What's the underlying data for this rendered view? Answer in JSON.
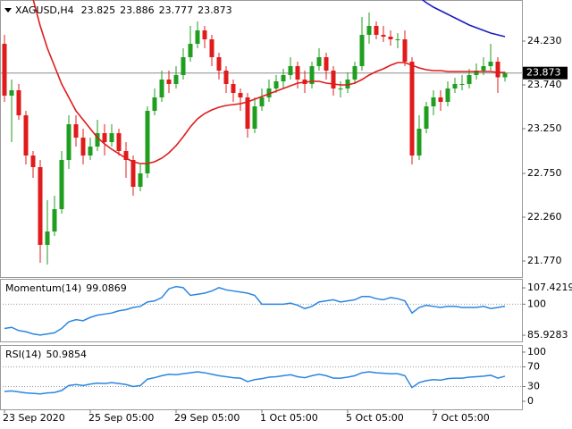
{
  "chart_data": [
    {
      "type": "candlestick",
      "title": "XAGUSD,H4",
      "categories": [
        "23 Sep 2020",
        null,
        null,
        null,
        null,
        null,
        null,
        null,
        null,
        null,
        null,
        null,
        "25 Sep 05:00",
        null,
        null,
        null,
        null,
        null,
        null,
        null,
        null,
        null,
        null,
        null,
        "29 Sep 05:00",
        null,
        null,
        null,
        null,
        null,
        null,
        null,
        null,
        null,
        null,
        null,
        "1 Oct 05:00",
        null,
        null,
        null,
        null,
        null,
        null,
        null,
        null,
        null,
        null,
        null,
        "5 Oct 05:00",
        null,
        null,
        null,
        null,
        null,
        null,
        null,
        null,
        null,
        null,
        null,
        "7 Oct 05:00",
        null,
        null,
        null,
        null,
        null,
        null,
        null,
        null,
        null,
        null
      ],
      "open": [
        24.2,
        23.62,
        23.68,
        23.4,
        22.95,
        22.82,
        21.95,
        22.1,
        22.35,
        22.9,
        23.3,
        23.15,
        22.95,
        23.05,
        23.2,
        23.1,
        23.2,
        23.0,
        22.9,
        22.6,
        22.75,
        23.45,
        23.6,
        23.8,
        23.75,
        23.85,
        24.05,
        24.2,
        24.35,
        24.25,
        24.05,
        23.9,
        23.75,
        23.65,
        23.6,
        23.25,
        23.5,
        23.6,
        23.7,
        23.78,
        23.85,
        23.95,
        23.8,
        23.75,
        23.95,
        24.05,
        23.9,
        23.7,
        23.7,
        23.8,
        23.95,
        24.3,
        24.4,
        24.3,
        24.28,
        24.25,
        24.25,
        24.0,
        22.95,
        23.25,
        23.5,
        23.6,
        23.55,
        23.7,
        23.75,
        23.75,
        23.85,
        23.9,
        23.95,
        24.0,
        23.825
      ],
      "high": [
        24.3,
        23.8,
        23.75,
        23.45,
        23.0,
        22.9,
        22.45,
        22.5,
        23.0,
        23.4,
        23.4,
        23.25,
        23.15,
        23.35,
        23.3,
        23.3,
        23.25,
        23.1,
        22.95,
        22.85,
        23.5,
        23.7,
        23.9,
        23.9,
        23.95,
        24.15,
        24.4,
        24.45,
        24.4,
        24.3,
        24.1,
        23.95,
        23.8,
        23.7,
        23.65,
        23.6,
        23.7,
        23.8,
        23.85,
        23.92,
        24.05,
        24.0,
        23.9,
        24.0,
        24.15,
        24.1,
        23.95,
        23.78,
        23.88,
        24.0,
        24.5,
        24.55,
        24.45,
        24.4,
        24.35,
        24.32,
        24.35,
        24.05,
        23.4,
        23.55,
        23.68,
        23.68,
        23.78,
        23.82,
        23.85,
        23.92,
        23.98,
        24.05,
        24.2,
        24.05,
        23.886
      ],
      "low": [
        23.55,
        23.1,
        23.35,
        22.85,
        22.7,
        21.75,
        21.73,
        22.05,
        22.3,
        22.8,
        23.05,
        22.85,
        22.9,
        23.0,
        22.95,
        23.05,
        22.95,
        22.7,
        22.5,
        22.55,
        22.7,
        23.4,
        23.55,
        23.65,
        23.7,
        23.8,
        24.0,
        24.15,
        24.15,
        23.95,
        23.8,
        23.65,
        23.55,
        23.45,
        23.15,
        23.2,
        23.45,
        23.55,
        23.65,
        23.7,
        23.8,
        23.7,
        23.65,
        23.7,
        23.9,
        23.8,
        23.62,
        23.6,
        23.65,
        23.75,
        23.9,
        24.2,
        24.25,
        24.22,
        24.18,
        24.15,
        23.95,
        22.85,
        22.9,
        23.2,
        23.4,
        23.45,
        23.5,
        23.65,
        23.68,
        23.7,
        23.8,
        23.85,
        23.9,
        23.65,
        23.777
      ],
      "close": [
        23.62,
        23.68,
        23.4,
        22.95,
        22.82,
        21.95,
        22.1,
        22.35,
        22.9,
        23.3,
        23.15,
        22.95,
        23.05,
        23.2,
        23.1,
        23.2,
        23.0,
        22.9,
        22.6,
        22.75,
        23.45,
        23.6,
        23.8,
        23.75,
        23.85,
        24.05,
        24.2,
        24.35,
        24.25,
        24.05,
        23.9,
        23.75,
        23.65,
        23.6,
        23.25,
        23.5,
        23.6,
        23.7,
        23.78,
        23.85,
        23.95,
        23.8,
        23.75,
        23.95,
        24.05,
        23.9,
        23.7,
        23.7,
        23.8,
        23.95,
        24.3,
        24.4,
        24.3,
        24.28,
        24.25,
        24.25,
        24.0,
        22.95,
        23.25,
        23.5,
        23.6,
        23.55,
        23.7,
        23.75,
        23.75,
        23.85,
        23.9,
        23.95,
        24.0,
        23.825,
        23.873
      ],
      "up_color": "#1f9e1f",
      "down_color": "#e01b1b",
      "overlays": [
        {
          "color": "#e01b1b",
          "values": [
            null,
            null,
            null,
            null,
            24.7,
            24.4,
            24.15,
            23.95,
            23.75,
            23.6,
            23.45,
            23.35,
            23.25,
            23.15,
            23.08,
            23.02,
            22.97,
            22.92,
            22.88,
            22.86,
            22.86,
            22.88,
            22.92,
            22.98,
            23.06,
            23.16,
            23.27,
            23.36,
            23.42,
            23.46,
            23.49,
            23.51,
            23.52,
            23.53,
            23.55,
            23.58,
            23.61,
            23.64,
            23.67,
            23.7,
            23.73,
            23.76,
            23.77,
            23.78,
            23.78,
            23.76,
            23.75,
            23.74,
            23.74,
            23.76,
            23.8,
            23.85,
            23.89,
            23.92,
            23.96,
            23.99,
            23.99,
            23.96,
            23.93,
            23.91,
            23.9,
            23.9,
            23.89,
            23.89,
            23.89,
            23.89,
            23.89,
            23.89,
            23.89,
            23.88,
            23.88
          ]
        },
        {
          "color": "#1c1cc0",
          "values": [
            null,
            null,
            null,
            null,
            null,
            null,
            null,
            null,
            null,
            null,
            null,
            null,
            null,
            null,
            null,
            null,
            null,
            null,
            null,
            null,
            null,
            null,
            null,
            null,
            null,
            null,
            null,
            null,
            null,
            null,
            null,
            null,
            null,
            null,
            null,
            null,
            null,
            null,
            null,
            null,
            null,
            null,
            null,
            null,
            null,
            null,
            null,
            null,
            null,
            null,
            null,
            null,
            null,
            null,
            null,
            null,
            null,
            null,
            24.72,
            24.66,
            24.61,
            24.57,
            24.53,
            24.49,
            24.45,
            24.41,
            24.38,
            24.35,
            24.32,
            24.3,
            24.28
          ]
        }
      ],
      "ylim": [
        21.59,
        24.69
      ],
      "yticks": [
        {
          "value": 24.23,
          "label": "24.230"
        },
        {
          "value": 23.74,
          "label": "23.740"
        },
        {
          "value": 23.25,
          "label": "23.250"
        },
        {
          "value": 22.75,
          "label": "22.750"
        },
        {
          "value": 22.26,
          "label": "22.260"
        },
        {
          "value": 21.77,
          "label": "21.770"
        }
      ]
    },
    {
      "type": "line",
      "title": "Momentum(14)",
      "color": "#2b86e0",
      "values": [
        89,
        89.5,
        88,
        87.5,
        86.5,
        86,
        86.5,
        87,
        89,
        92,
        93,
        92.5,
        94,
        95,
        95.5,
        96,
        97,
        97.5,
        98.5,
        99,
        101,
        101.5,
        103,
        107,
        108,
        107.5,
        104,
        104.5,
        105,
        106,
        107.5,
        106.5,
        106,
        105.5,
        105,
        104,
        100,
        100,
        100,
        100,
        100.5,
        99.5,
        98,
        99,
        101,
        101.5,
        102,
        101,
        101.5,
        102,
        103.5,
        103.5,
        102.5,
        102,
        103,
        102.5,
        101.5,
        96,
        98.5,
        99.5,
        99,
        98.5,
        99,
        99,
        98.5,
        98.5,
        98.5,
        99,
        98,
        98.5,
        99.0869
      ],
      "ylim": [
        83.1,
        111.5
      ],
      "yticks": [
        107.4219,
        100,
        85.9283
      ],
      "levels": [
        100
      ]
    },
    {
      "type": "line",
      "title": "RSI(14)",
      "color": "#2b86e0",
      "values": [
        20,
        21,
        19,
        17,
        16,
        15,
        17,
        18,
        22,
        32,
        34,
        32,
        35,
        37,
        36,
        38,
        36,
        34,
        30,
        32,
        45,
        48,
        52,
        55,
        54,
        56,
        58,
        60,
        58,
        55,
        52,
        50,
        48,
        47,
        40,
        44,
        46,
        49,
        50,
        52,
        54,
        50,
        48,
        52,
        55,
        52,
        47,
        47,
        49,
        52,
        58,
        60,
        58,
        57,
        56,
        56,
        52,
        28,
        38,
        42,
        44,
        43,
        46,
        47,
        47,
        49,
        50,
        51,
        53,
        47,
        50.9854
      ],
      "ylim": [
        -16.4,
        114.5
      ],
      "yticks": [
        100,
        70,
        30,
        0
      ],
      "levels": [
        70,
        30
      ]
    }
  ]
}
